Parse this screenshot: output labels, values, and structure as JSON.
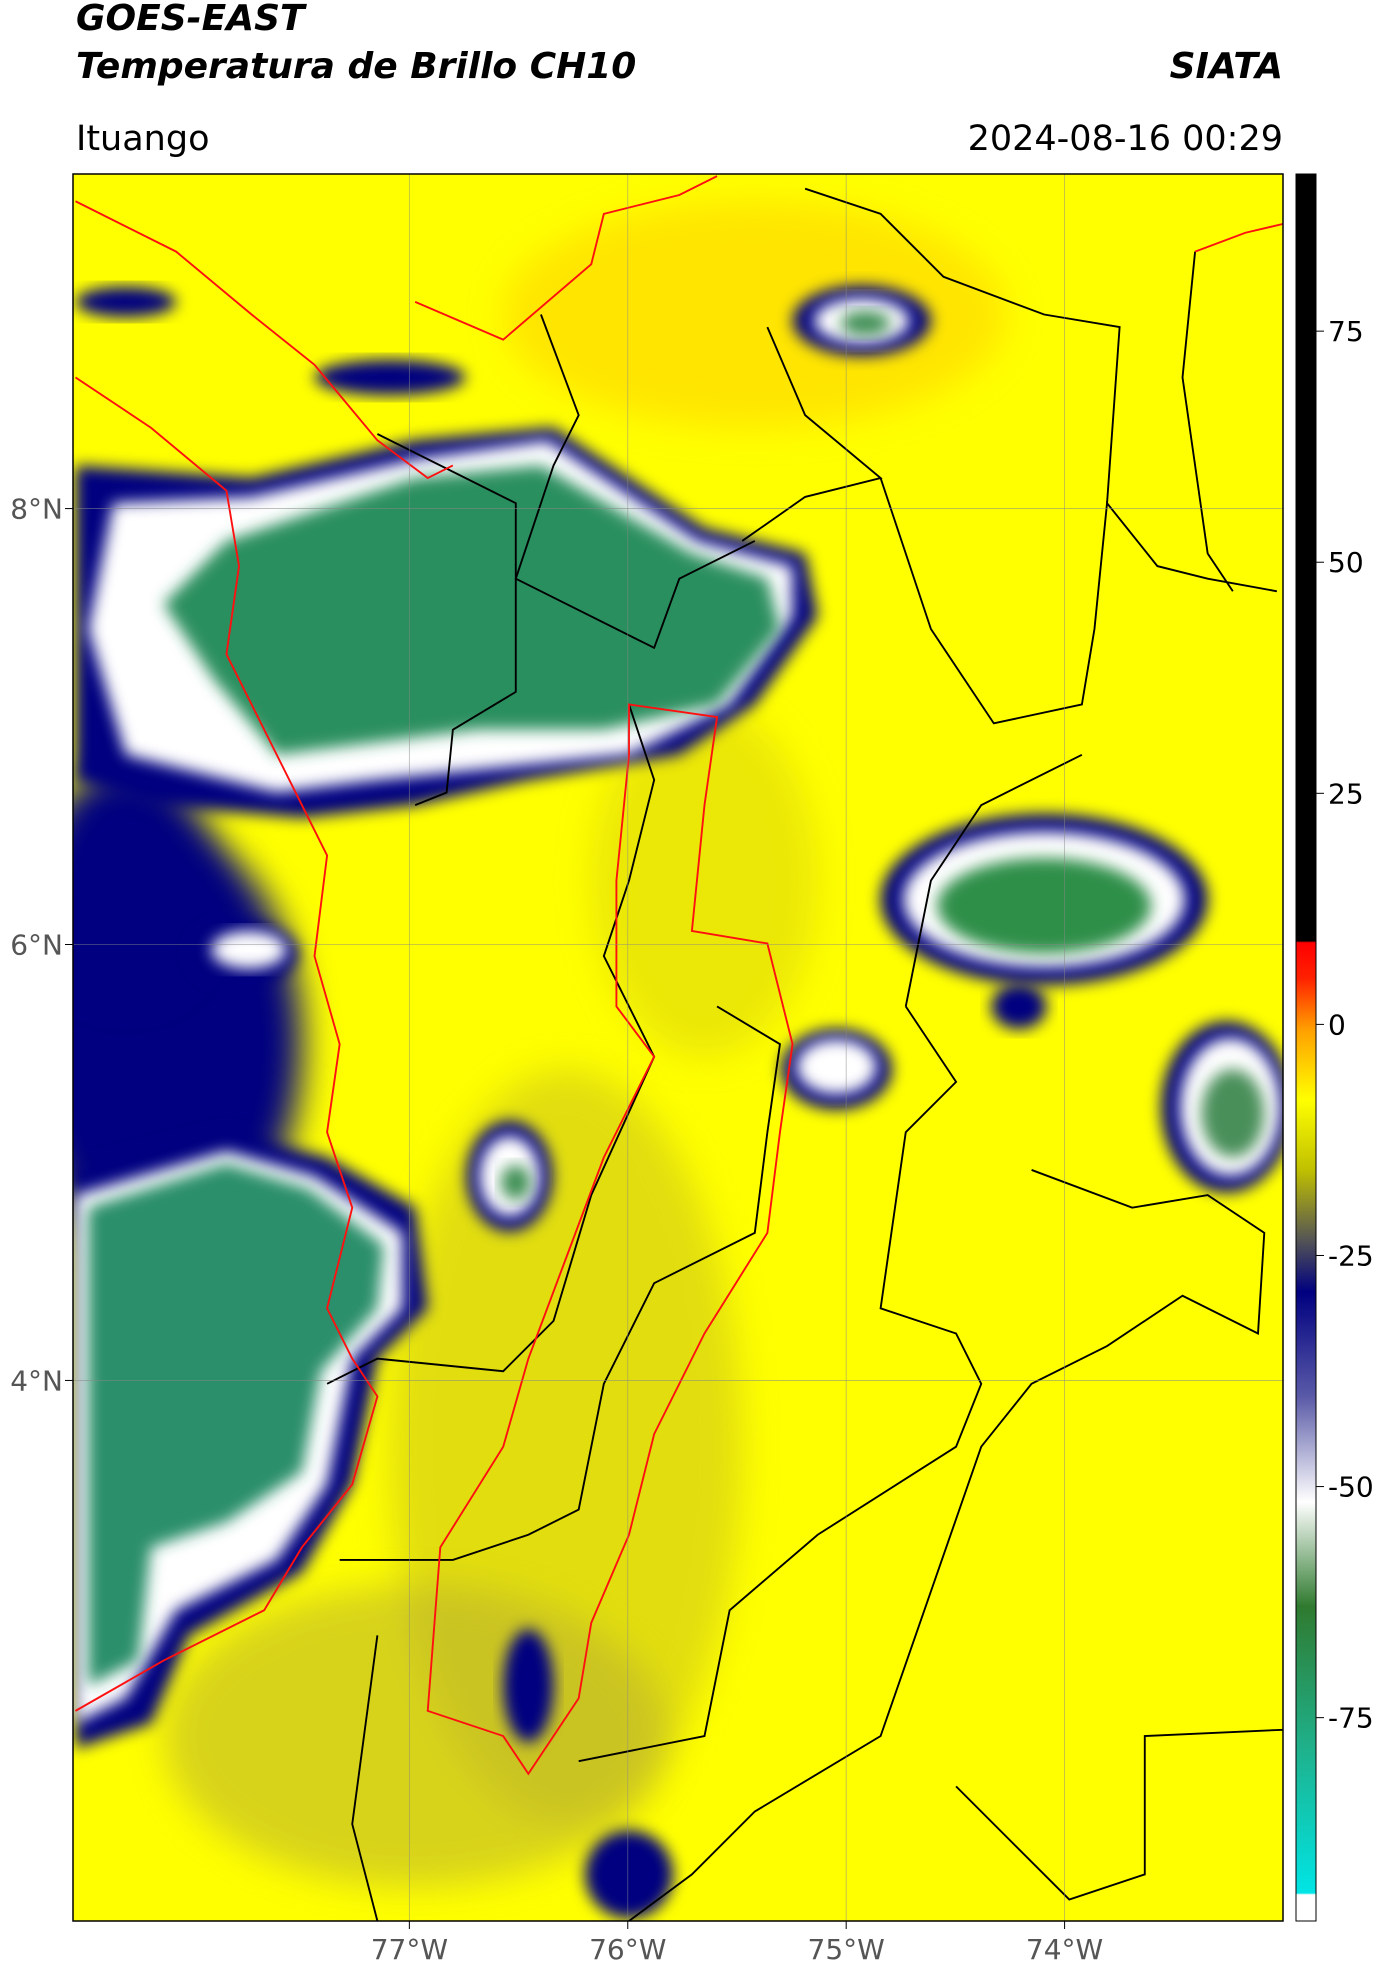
{
  "header": {
    "title_line1": "GOES-EAST",
    "title_line2": "Temperatura de Brillo CH10",
    "agency": "SIATA",
    "location": "Ituango",
    "timestamp": "2024-08-16 00:29"
  },
  "map": {
    "type": "map",
    "xlim": [
      -78.54,
      -73.0
    ],
    "ylim": [
      1.52,
      9.535
    ],
    "xticks": [
      {
        "value": -77,
        "label": "77°W"
      },
      {
        "value": -76,
        "label": "76°W"
      },
      {
        "value": -75,
        "label": "75°W"
      },
      {
        "value": -74,
        "label": "74°W"
      }
    ],
    "yticks": [
      {
        "value": 8,
        "label": "8°N"
      },
      {
        "value": 6,
        "label": "6°N"
      },
      {
        "value": 4,
        "label": "4°N"
      }
    ],
    "grid": true
  },
  "colorbar": {
    "lim": [
      -97,
      92
    ],
    "ticks": [
      75,
      50,
      25,
      0,
      -25,
      -50,
      -75
    ]
  }
}
